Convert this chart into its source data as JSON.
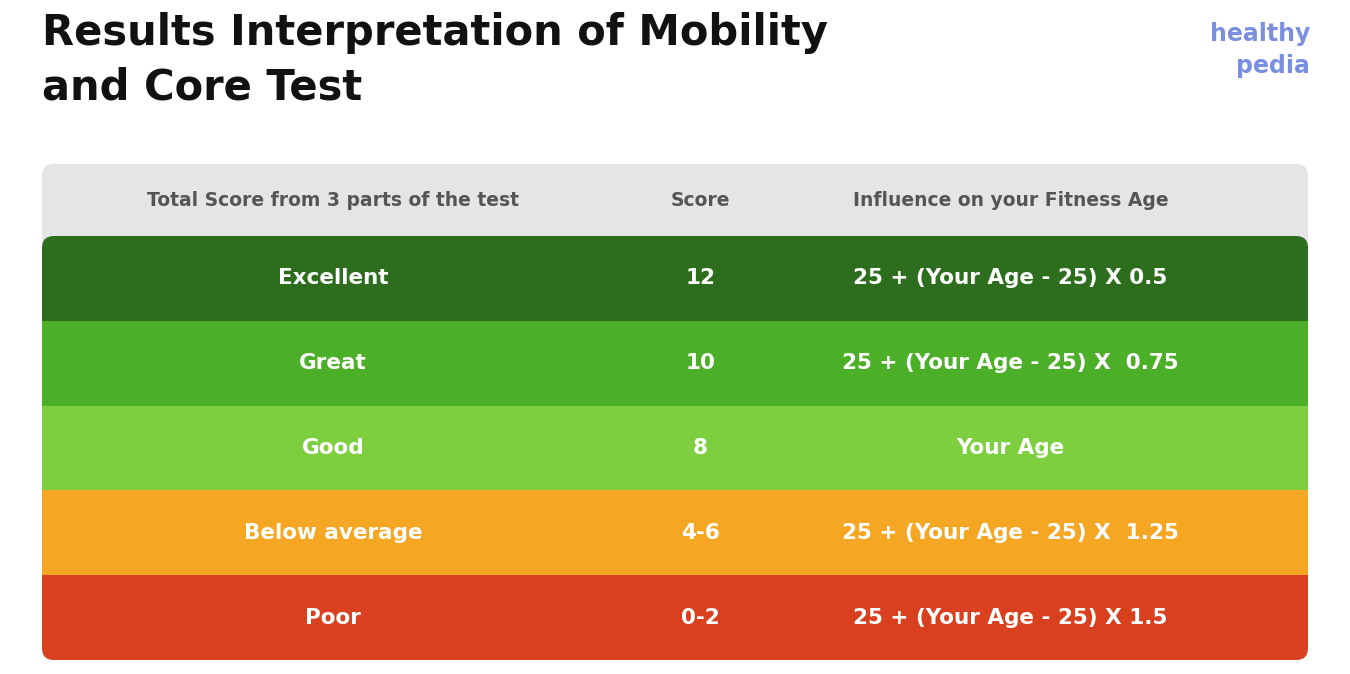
{
  "title_line1": "Results Interpretation of Mobility",
  "title_line2": "and Core Test",
  "title_fontsize": 30,
  "title_color": "#111111",
  "logo_line1": "healthy",
  "logo_line2": "pedia",
  "logo_color": "#7b8fe0",
  "background_color": "#ffffff",
  "table_bg_color": "#e5e5e5",
  "header_row": {
    "col1": "Total Score from 3 parts of the test",
    "col2": "Score",
    "col3": "Influence on your Fitness Age",
    "text_color": "#555555",
    "fontsize": 13.5
  },
  "rows": [
    {
      "label": "Excellent",
      "score": "12",
      "influence": "25 + (Your Age - 25) X 0.5",
      "bg_color": "#2d6e1e"
    },
    {
      "label": "Great",
      "score": "10",
      "influence": "25 + (Your Age - 25) X  0.75",
      "bg_color": "#4caf28"
    },
    {
      "label": "Good",
      "score": "8",
      "influence": "Your Age",
      "bg_color": "#7dcf40"
    },
    {
      "label": "Below average",
      "score": "4-6",
      "influence": "25 + (Your Age - 25) X  1.25",
      "bg_color": "#f5a623"
    },
    {
      "label": "Poor",
      "score": "0-2",
      "influence": "25 + (Your Age - 25) X 1.5",
      "bg_color": "#d94020"
    }
  ],
  "row_text_color": "#ffffff",
  "row_fontsize": 15.5
}
